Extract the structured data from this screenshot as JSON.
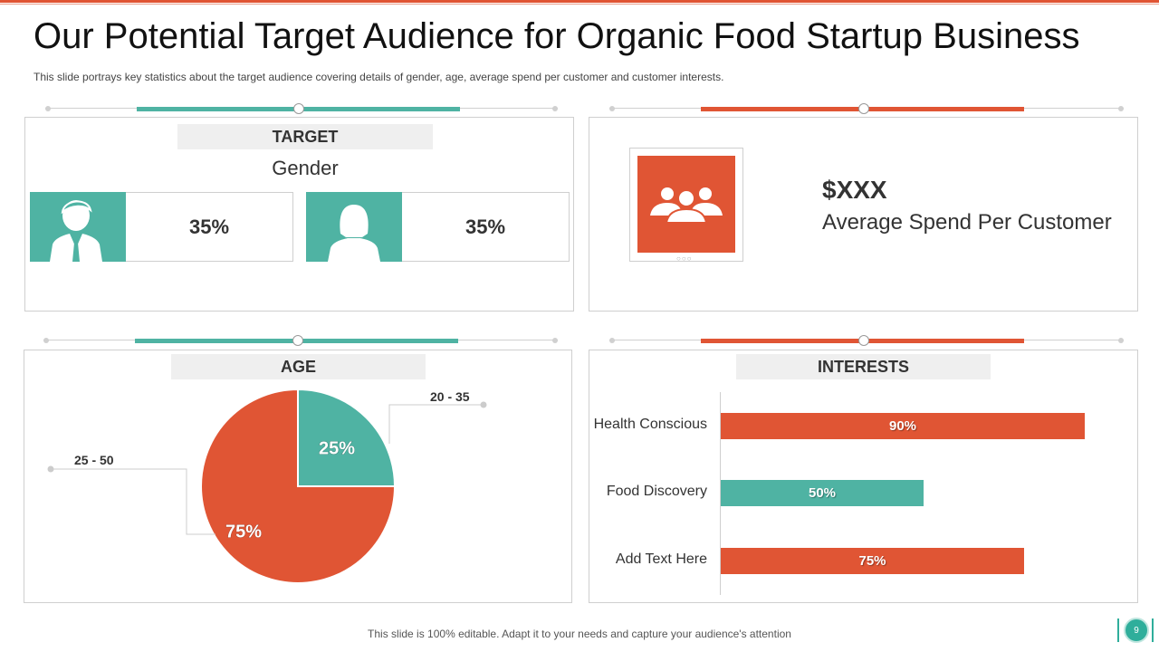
{
  "title": "Our Potential Target Audience for Organic Food Startup Business",
  "subtitle": "This slide portrays key statistics about the target audience covering  details of gender,  age, average  spend per customer and customer interests.",
  "colors": {
    "teal": "#4fb3a3",
    "orange": "#e05534"
  },
  "target": {
    "header": "TARGET",
    "label": "Gender",
    "male": {
      "icon": "male-user-icon",
      "value": "35%"
    },
    "female": {
      "icon": "female-user-icon",
      "value": "35%"
    }
  },
  "spend": {
    "icon": "group-of-people-icon",
    "value": "$XXX",
    "label": "Average Spend Per Customer"
  },
  "age": {
    "header": "AGE"
  },
  "interests": {
    "header": "INTERESTS"
  },
  "chart_data": [
    {
      "type": "pie",
      "labels": [
        "20 - 35",
        "25 - 50"
      ],
      "values": [
        25,
        75
      ],
      "value_labels": [
        "25%",
        "75%"
      ],
      "colors": [
        "#4fb3a3",
        "#e05534"
      ]
    },
    {
      "type": "bar",
      "orientation": "horizontal",
      "categories": [
        "Health Conscious",
        "Food Discovery",
        "Add Text Here"
      ],
      "values": [
        90,
        50,
        75
      ],
      "value_labels": [
        "90%",
        "50%",
        "75%"
      ],
      "colors": [
        "#e05534",
        "#4fb3a3",
        "#e05534"
      ],
      "xlim": [
        0,
        100
      ]
    }
  ],
  "footer": "This slide is 100% editable. Adapt it to your needs and capture your audience's attention",
  "page_number": "9"
}
